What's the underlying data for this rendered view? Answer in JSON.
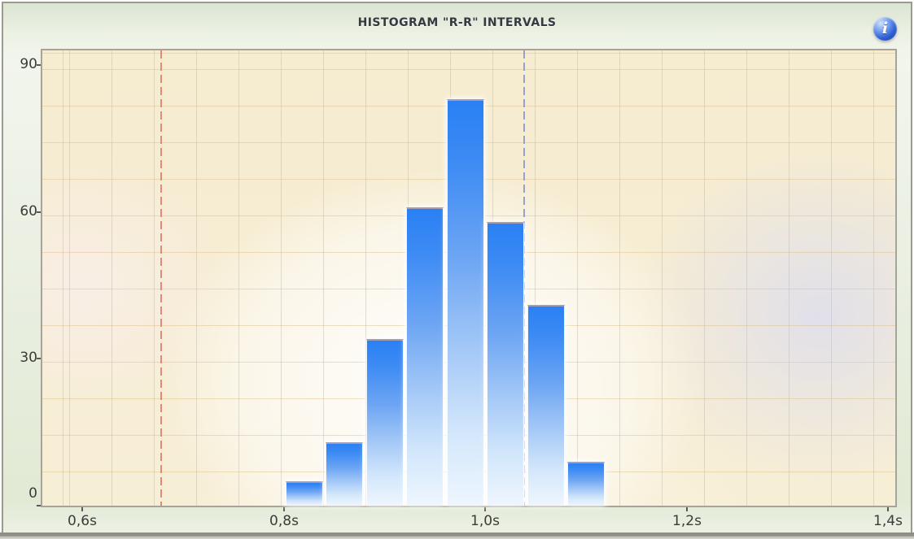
{
  "header": {
    "title": "HISTOGRAM \"R-R\" INTERVALS",
    "info_icon_glyph": "i"
  },
  "chart_data": {
    "type": "bar",
    "title": "HISTOGRAM \"R-R\" INTERVALS",
    "xlabel": "",
    "ylabel": "",
    "x_unit_suffix": "s",
    "xlim": [
      0.56,
      1.407
    ],
    "ylim": [
      0,
      93
    ],
    "grid": true,
    "legend_position": "none",
    "y_ticks": [
      {
        "value": 0,
        "label": "0"
      },
      {
        "value": 30,
        "label": "30"
      },
      {
        "value": 60,
        "label": "60"
      },
      {
        "value": 90,
        "label": "90"
      }
    ],
    "x_ticks": [
      {
        "value": 0.6,
        "label": "0,6s"
      },
      {
        "value": 0.8,
        "label": "0,8s"
      },
      {
        "value": 1.0,
        "label": "1,0s"
      },
      {
        "value": 1.2,
        "label": "1,2s"
      },
      {
        "value": 1.4,
        "label": "1,4s"
      }
    ],
    "bin_width_s": 0.04,
    "bins": [
      {
        "start_s": 0.8,
        "count": 5
      },
      {
        "start_s": 0.84,
        "count": 13
      },
      {
        "start_s": 0.88,
        "count": 34
      },
      {
        "start_s": 0.92,
        "count": 61
      },
      {
        "start_s": 0.96,
        "count": 83
      },
      {
        "start_s": 1.0,
        "count": 58
      },
      {
        "start_s": 1.04,
        "count": 41
      },
      {
        "start_s": 1.08,
        "count": 9
      }
    ],
    "markers": [
      {
        "name": "lower-limit-marker",
        "value_s": 0.68,
        "color": "#df8b77",
        "style": "dashed"
      },
      {
        "name": "upper-limit-marker",
        "value_s": 1.04,
        "color": "#98a0d0",
        "style": "dashed"
      }
    ],
    "colors": {
      "bar_top": "#2a80f4",
      "bar_bottom": "#eef6fe",
      "grid_line": "#dbc08a",
      "axis_text": "#3b3b3b"
    }
  }
}
